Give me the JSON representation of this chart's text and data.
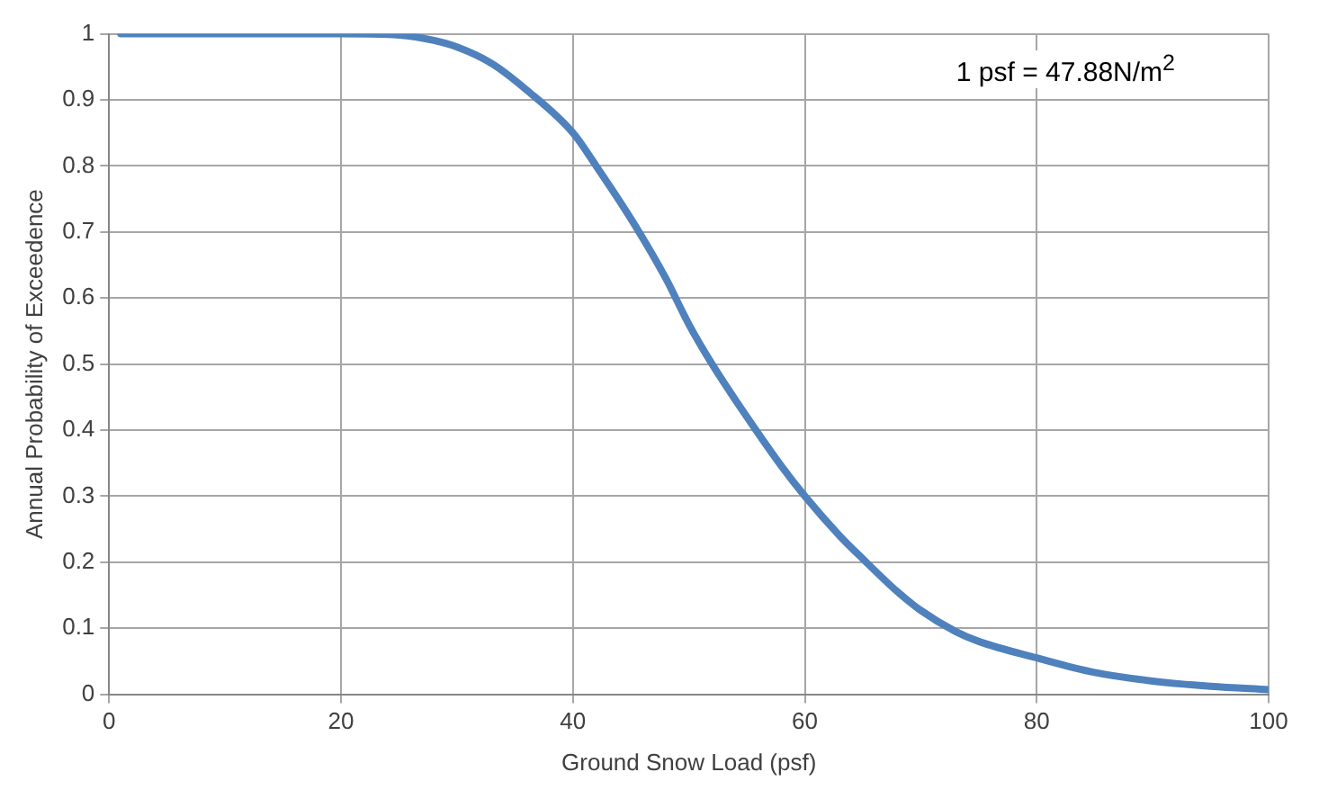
{
  "chart_data": {
    "type": "line",
    "xlabel": "Ground Snow Load (psf)",
    "ylabel": "Annual Probability of Exceedence",
    "annotations": [
      "1 psf = 47.88N/m$^{2}$"
    ],
    "series": [
      {
        "color": "#4f81bd",
        "x": [
          1,
          10,
          20,
          25,
          28,
          30,
          33,
          36,
          40,
          42,
          45,
          48,
          50,
          52,
          55,
          58,
          60,
          63,
          65,
          68,
          70,
          73,
          75,
          80,
          85,
          90,
          95,
          100
        ],
        "values": [
          1,
          1,
          1,
          0.998,
          0.99,
          0.98,
          0.955,
          0.915,
          0.85,
          0.8,
          0.72,
          0.63,
          0.56,
          0.5,
          0.42,
          0.345,
          0.3,
          0.24,
          0.205,
          0.155,
          0.127,
          0.095,
          0.08,
          0.055,
          0.033,
          0.02,
          0.012,
          0.007
        ]
      }
    ],
    "xlim": [
      0,
      100
    ],
    "xticks": [
      0,
      20,
      40,
      60,
      80,
      100
    ],
    "ylim": [
      0,
      1
    ],
    "yticks": [
      0,
      0.1,
      0.2,
      0.3,
      0.4,
      0.5,
      0.6,
      0.7,
      0.8,
      0.9,
      1
    ],
    "grid": true,
    "legend": false,
    "marker": "none",
    "line_style": "solid"
  }
}
